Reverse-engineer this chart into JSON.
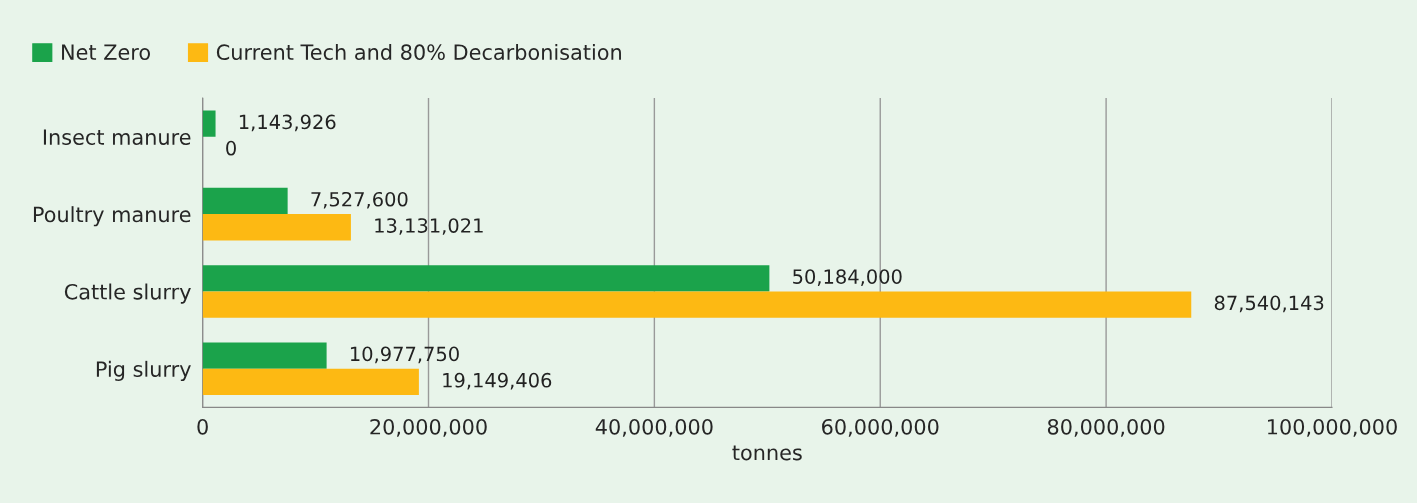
{
  "chart_data": {
    "type": "bar",
    "orientation": "horizontal",
    "xlabel": "tonnes",
    "categories": [
      "Insect manure",
      "Poultry manure",
      "Cattle slurry",
      "Pig slurry"
    ],
    "series": [
      {
        "name": "Net Zero",
        "color": "#1ba34b",
        "values": [
          1143926,
          7527600,
          50184000,
          10977750
        ],
        "value_labels": [
          "1,143,926",
          "7,527,600",
          "50,184,000",
          "10,977,750"
        ]
      },
      {
        "name": "Current Tech and 80% Decarbonisation",
        "color": "#fdb913",
        "values": [
          0,
          13131021,
          87540143,
          19149406
        ],
        "value_labels": [
          "0",
          "13,131,021",
          "87,540,143",
          "19,149,406"
        ]
      }
    ],
    "xlim": [
      0,
      100000000
    ],
    "xticks": [
      {
        "value": 0,
        "label": "0"
      },
      {
        "value": 20000000,
        "label": "20,000,000"
      },
      {
        "value": 40000000,
        "label": "40,000,000"
      },
      {
        "value": 60000000,
        "label": "60,000,000"
      },
      {
        "value": 80000000,
        "label": "80,000,000"
      },
      {
        "value": 100000000,
        "label": "100,000,000"
      }
    ],
    "grid": "x",
    "legend": "top left"
  }
}
